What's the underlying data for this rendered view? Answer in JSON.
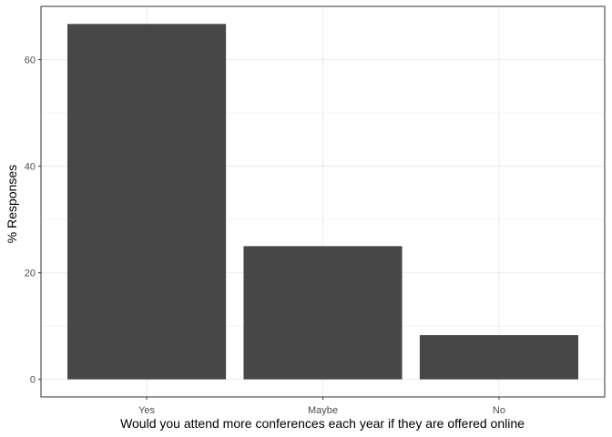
{
  "chart_data": {
    "type": "bar",
    "title": "",
    "xlabel": "Would you attend more conferences each year if they are offered online",
    "ylabel": "% Responses",
    "categories": [
      "Yes",
      "Maybe",
      "No"
    ],
    "values": [
      66.7,
      25.0,
      8.3
    ],
    "ylim": [
      -3.3,
      70.0
    ],
    "y_ticks": [
      0,
      20,
      40,
      60
    ],
    "y_tick_labels": [
      "0",
      "20",
      "40",
      "60"
    ],
    "grid": true,
    "legend": "none",
    "colors": {
      "bar": "#474747",
      "panel_background": "#ffffff",
      "grid": "#ebebeb",
      "border": "#333333",
      "tick_label": "#4d4d4d",
      "axis_title": "#000000"
    }
  }
}
